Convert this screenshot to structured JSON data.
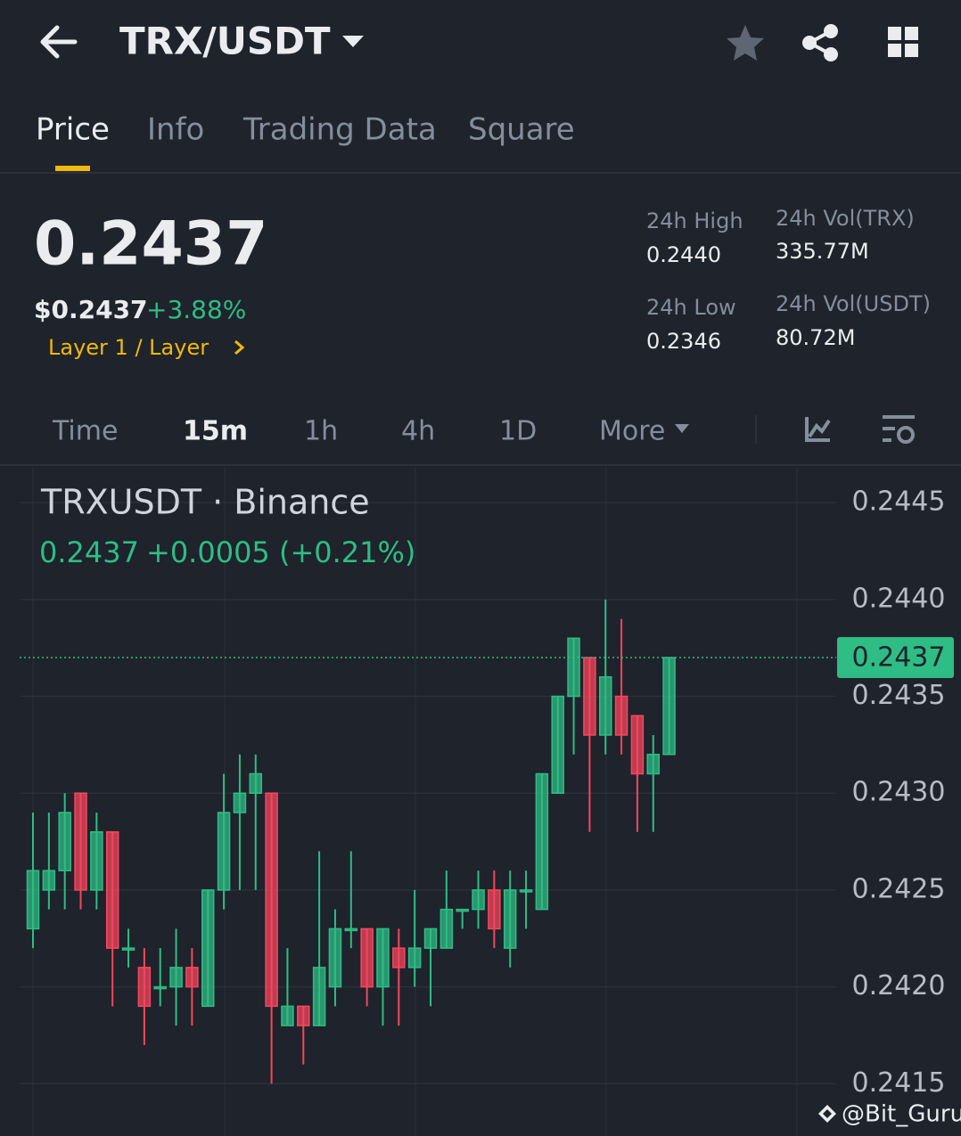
{
  "header": {
    "pair": "TRX/USDT"
  },
  "tabs": [
    "Price",
    "Info",
    "Trading Data",
    "Square"
  ],
  "summary": {
    "price": "0.2437",
    "usd_price": "$0.2437",
    "change": "+3.88%",
    "tag": "Layer 1 / Layer",
    "stats": [
      {
        "label": "24h High",
        "value": "0.2440"
      },
      {
        "label": "24h Vol(TRX)",
        "value": "335.77M"
      },
      {
        "label": "24h Low",
        "value": "0.2346"
      },
      {
        "label": "24h Vol(USDT)",
        "value": "80.72M"
      }
    ]
  },
  "intervals": [
    "Time",
    "15m",
    "1h",
    "4h",
    "1D",
    "More"
  ],
  "watermark": "@Bit_Guru",
  "chart_data": {
    "type": "candlestick",
    "title": "TRXUSDT · Binance",
    "subtitle_price": "0.2437",
    "subtitle_change": "+0.0005 (+0.21%)",
    "up_color": "#2ebd85",
    "down_color": "#f6465d",
    "open": [
      0.2423,
      0.2425,
      0.2426,
      0.243,
      0.2425,
      0.2428,
      0.2422,
      0.2421,
      0.242,
      0.242,
      0.2421,
      0.2419,
      0.2425,
      0.2429,
      0.243,
      0.243,
      0.2418,
      0.2419,
      0.2418,
      0.242,
      0.2423,
      0.2423,
      0.242,
      0.2422,
      0.2421,
      0.2422,
      0.2422,
      0.2424,
      0.2424,
      0.2425,
      0.2422,
      0.2425,
      0.2424,
      0.243,
      0.2435,
      0.2437,
      0.2433,
      0.2435,
      0.2434,
      0.2431,
      0.2432
    ],
    "high": [
      0.2429,
      0.2429,
      0.243,
      0.243,
      0.2429,
      0.2428,
      0.2423,
      0.2422,
      0.2422,
      0.2423,
      0.2422,
      0.2425,
      0.2431,
      0.2432,
      0.2432,
      0.243,
      0.2422,
      0.2419,
      0.2427,
      0.2424,
      0.2427,
      0.2423,
      0.2423,
      0.2423,
      0.2425,
      0.2423,
      0.2426,
      0.2424,
      0.2426,
      0.2426,
      0.2426,
      0.2426,
      0.2431,
      0.2435,
      0.2438,
      0.2437,
      0.244,
      0.2439,
      0.2434,
      0.2433,
      0.2437
    ],
    "low": [
      0.2422,
      0.2424,
      0.2424,
      0.2424,
      0.2424,
      0.2419,
      0.2421,
      0.2417,
      0.2419,
      0.2418,
      0.2418,
      0.2419,
      0.2424,
      0.2425,
      0.2425,
      0.2415,
      0.2418,
      0.2416,
      0.2418,
      0.2419,
      0.2422,
      0.2419,
      0.2418,
      0.2418,
      0.242,
      0.2419,
      0.2422,
      0.2423,
      0.2423,
      0.2422,
      0.2421,
      0.2423,
      0.2424,
      0.243,
      0.2432,
      0.2428,
      0.2432,
      0.2432,
      0.2428,
      0.2428,
      0.2432
    ],
    "close": [
      0.2426,
      0.2426,
      0.2429,
      0.2425,
      0.2428,
      0.2422,
      0.2422,
      0.2419,
      0.242,
      0.2421,
      0.242,
      0.2425,
      0.2429,
      0.243,
      0.2431,
      0.2419,
      0.2419,
      0.2418,
      0.2421,
      0.2423,
      0.2423,
      0.242,
      0.2423,
      0.2421,
      0.2422,
      0.2423,
      0.2424,
      0.2424,
      0.2425,
      0.2423,
      0.2425,
      0.2425,
      0.2431,
      0.2435,
      0.2438,
      0.2433,
      0.2436,
      0.2433,
      0.2431,
      0.2432,
      0.2437
    ],
    "last_price": 0.2437,
    "ylim": [
      0.24123,
      0.24468
    ],
    "yticks": [
      {
        "value": 0.2415,
        "label": "0.2415"
      },
      {
        "value": 0.242,
        "label": "0.2420"
      },
      {
        "value": 0.2425,
        "label": "0.2425"
      },
      {
        "value": 0.243,
        "label": "0.2430"
      },
      {
        "value": 0.2435,
        "label": "0.2435"
      },
      {
        "value": 0.244,
        "label": "0.2440"
      },
      {
        "value": 0.2445,
        "label": "0.2445"
      }
    ],
    "grid": true
  }
}
